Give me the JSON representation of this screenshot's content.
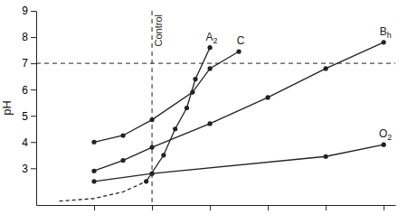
{
  "chart_data": {
    "type": "line",
    "y_label": "pH",
    "xlim": [
      0,
      6.2
    ],
    "xticks": [
      1,
      2,
      3,
      4,
      5,
      6
    ],
    "ylim": [
      1.6,
      9
    ],
    "yticks": [
      3,
      4,
      5,
      6,
      7,
      8,
      9
    ],
    "tick_labels": "y",
    "grid": false,
    "reference_lines": [
      {
        "axis": "x",
        "value": 2,
        "label": "Control"
      },
      {
        "axis": "y",
        "value": 7
      }
    ],
    "series": [
      {
        "color": "#222222",
        "line_style": "dashed",
        "marker": "none",
        "x": [
          0.4,
          1,
          1.5,
          1.9
        ],
        "values": [
          1.75,
          1.85,
          2.1,
          2.5
        ]
      },
      {
        "name": "A2",
        "color": "#222222",
        "line_style": "solid",
        "marker": "circle",
        "x": [
          1.9,
          2.2,
          2.4,
          2.6,
          2.75,
          3.0
        ],
        "values": [
          2.5,
          3.5,
          4.5,
          5.3,
          6.4,
          7.6
        ]
      },
      {
        "name": "C",
        "color": "#222222",
        "line_style": "solid",
        "marker": "circle",
        "x": [
          1,
          1.5,
          2,
          2.7,
          3,
          3.5
        ],
        "values": [
          4.0,
          4.25,
          4.85,
          5.9,
          6.8,
          7.45
        ]
      },
      {
        "name": "Bh",
        "color": "#222222",
        "line_style": "solid",
        "marker": "circle",
        "x": [
          1,
          1.5,
          2,
          3,
          4,
          5,
          6
        ],
        "values": [
          2.9,
          3.3,
          3.8,
          4.7,
          5.7,
          6.8,
          7.8
        ]
      },
      {
        "name": "O2",
        "color": "#222222",
        "line_style": "solid",
        "marker": "circle",
        "x": [
          1,
          2,
          5,
          6
        ],
        "values": [
          2.5,
          2.8,
          3.45,
          3.9
        ]
      }
    ]
  }
}
